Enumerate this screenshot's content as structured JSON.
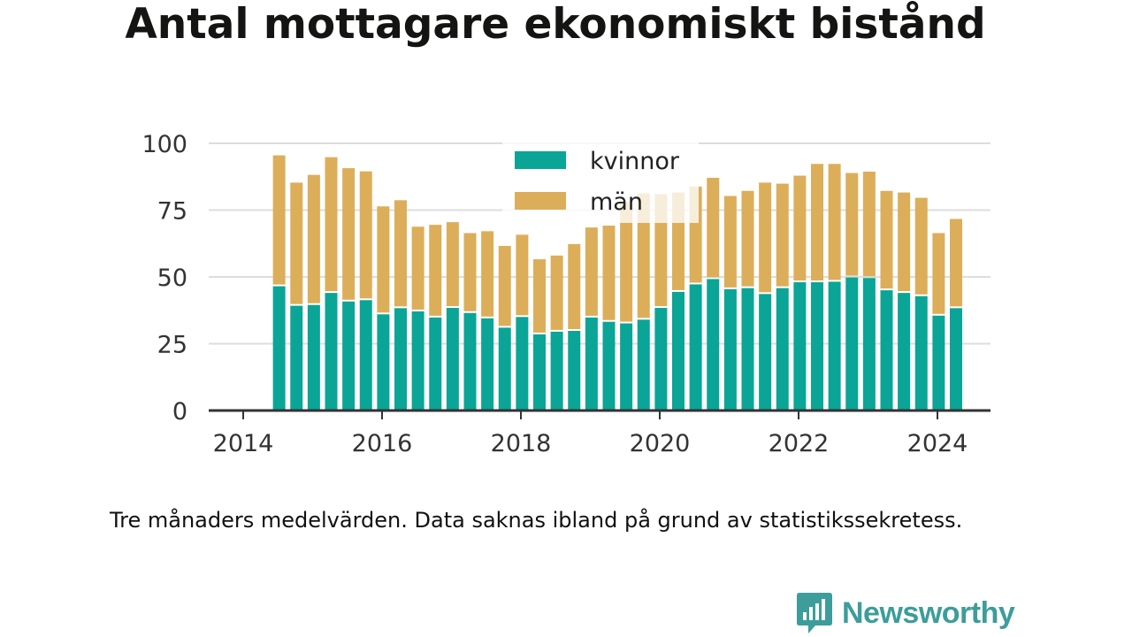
{
  "title": "Antal mottagare ekonomiskt bistånd",
  "note": "Tre månaders medelvärden. Data saknas ibland på grund av statistikssekretess.",
  "brand": "Newsworthy",
  "colors": {
    "kvinnor": "#0aa597",
    "man": "#dcae5a",
    "axis": "#333333",
    "grid": "#dddddd"
  },
  "chart_data": {
    "type": "bar",
    "stacked": true,
    "xlim": [
      2014,
      2024.6
    ],
    "ylim": [
      0,
      100
    ],
    "yticks": [
      0,
      25,
      50,
      75,
      100
    ],
    "xticks": [
      2014,
      2016,
      2018,
      2020,
      2022,
      2024
    ],
    "grid": true,
    "legend_position": "top-center",
    "x": [
      "2014-04",
      "2014-07",
      "2014-10",
      "2015-01",
      "2015-04",
      "2015-07",
      "2015-10",
      "2016-01",
      "2016-04",
      "2016-07",
      "2016-10",
      "2017-01",
      "2017-04",
      "2017-07",
      "2017-10",
      "2018-01",
      "2018-04",
      "2018-07",
      "2018-10",
      "2019-01",
      "2019-04",
      "2019-07",
      "2019-10",
      "2020-01",
      "2020-04",
      "2020-07",
      "2020-10",
      "2021-01",
      "2021-04",
      "2021-07",
      "2021-10",
      "2022-01",
      "2022-04",
      "2022-07",
      "2022-10",
      "2023-01",
      "2023-04",
      "2023-07",
      "2023-10",
      "2024-01"
    ],
    "series": [
      {
        "name": "kvinnor",
        "values": [
          46.5,
          39.2,
          39.5,
          44.0,
          40.8,
          41.3,
          36.0,
          38.3,
          37.1,
          34.8,
          38.4,
          36.5,
          34.5,
          31.0,
          35.0,
          28.5,
          29.5,
          29.8,
          34.8,
          33.2,
          32.6,
          34.0,
          38.4,
          44.4,
          47.2,
          49.2,
          45.4,
          45.8,
          43.6,
          45.8,
          48.0,
          48.0,
          48.2,
          49.8,
          49.6,
          45.0,
          44.0,
          42.8,
          35.5,
          38.3
        ]
      },
      {
        "name": "män",
        "values": [
          49.0,
          46.1,
          48.7,
          50.8,
          49.9,
          48.2,
          40.4,
          40.4,
          31.7,
          34.7,
          32.1,
          29.9,
          32.6,
          30.6,
          30.8,
          28.1,
          28.5,
          32.5,
          33.7,
          36.0,
          45.5,
          47.3,
          42.6,
          37.2,
          36.6,
          37.9,
          34.9,
          36.4,
          41.7,
          39.1,
          39.9,
          44.3,
          44.1,
          39.1,
          39.8,
          37.2,
          37.6,
          36.8,
          30.9,
          33.4
        ]
      }
    ]
  }
}
